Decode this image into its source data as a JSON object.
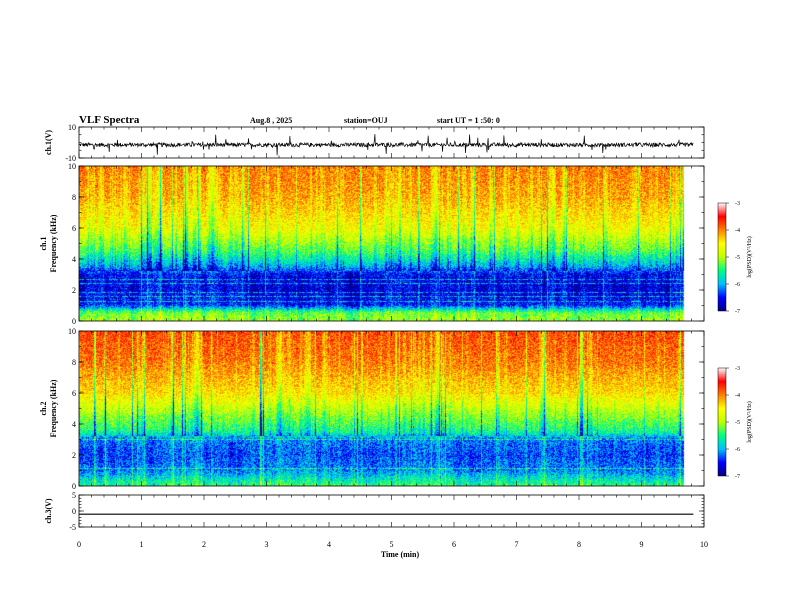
{
  "header": {
    "title": "VLF Spectra",
    "date": "Aug.8 , 2025",
    "station": "station=OUJ",
    "start_ut": "start UT = 1 :50: 0"
  },
  "chart_data": [
    {
      "type": "line",
      "panel": "ch1-waveform",
      "ylabel": "ch.1(V)",
      "ylim": [
        -10,
        10
      ],
      "ytick_labels": [
        "10",
        "-10"
      ],
      "x_range_min": [
        0,
        9.83
      ],
      "baseline": -1.5,
      "noise_amplitude": 1.3,
      "spike_amplitude": 4,
      "color": "#000000"
    },
    {
      "type": "heatmap",
      "panel": "ch1-spectrogram",
      "ylabel_line1": "ch.1",
      "ylabel_line2": "Frequency (kHz)",
      "ylim": [
        0,
        10
      ],
      "ytick_labels": [
        "0",
        "2",
        "4",
        "6",
        "8",
        "10"
      ],
      "x_range_min": [
        0,
        9.83
      ],
      "colorbar": {
        "label": "log(PSD)(V²/Hz)",
        "range": [
          -7,
          -3
        ],
        "tick_labels": [
          "-3",
          "-4",
          "-5",
          "-6",
          "-7"
        ],
        "colors": [
          "#000080",
          "#0000ff",
          "#00c0ff",
          "#00ff80",
          "#c0ff00",
          "#ffff00",
          "#ff8000",
          "#ff0000",
          "#ffffff"
        ]
      },
      "band_profile": [
        {
          "f": 0.0,
          "v": -4.8
        },
        {
          "f": 0.5,
          "v": -5.0
        },
        {
          "f": 1.0,
          "v": -6.4
        },
        {
          "f": 2.0,
          "v": -6.6
        },
        {
          "f": 3.0,
          "v": -6.5
        },
        {
          "f": 3.5,
          "v": -5.8
        },
        {
          "f": 4.5,
          "v": -5.0
        },
        {
          "f": 6.0,
          "v": -4.2
        },
        {
          "f": 8.0,
          "v": -3.7
        },
        {
          "f": 10.0,
          "v": -3.5
        }
      ]
    },
    {
      "type": "heatmap",
      "panel": "ch2-spectrogram",
      "ylabel_line1": "ch.2",
      "ylabel_line2": "Frequency (kHz)",
      "ylim": [
        0,
        10
      ],
      "ytick_labels": [
        "0",
        "2",
        "4",
        "6",
        "8",
        "10"
      ],
      "x_range_min": [
        0,
        9.83
      ],
      "colorbar": {
        "label": "log(PSD)(V²/Hz)",
        "range": [
          -7,
          -3
        ],
        "tick_labels": [
          "-3",
          "-4",
          "-5",
          "-6",
          "-7"
        ],
        "colors": [
          "#000080",
          "#0000ff",
          "#00c0ff",
          "#00ff80",
          "#c0ff00",
          "#ffff00",
          "#ff8000",
          "#ff0000",
          "#ffffff"
        ]
      },
      "band_profile": [
        {
          "f": 0.0,
          "v": -5.2
        },
        {
          "f": 0.5,
          "v": -5.6
        },
        {
          "f": 1.0,
          "v": -6.0
        },
        {
          "f": 2.0,
          "v": -6.2
        },
        {
          "f": 3.0,
          "v": -6.0
        },
        {
          "f": 3.5,
          "v": -5.3
        },
        {
          "f": 4.5,
          "v": -4.8
        },
        {
          "f": 6.0,
          "v": -4.0
        },
        {
          "f": 8.0,
          "v": -3.5
        },
        {
          "f": 10.0,
          "v": -3.3
        }
      ]
    },
    {
      "type": "line",
      "panel": "ch3-waveform",
      "ylabel": "ch.3(V)",
      "ylim": [
        -5,
        5
      ],
      "ytick_labels": [
        "5",
        "0",
        "-5"
      ],
      "x_range_min": [
        0,
        9.83
      ],
      "value": -1.0,
      "color": "#000000"
    }
  ],
  "x_axis": {
    "label": "Time (min)",
    "range": [
      0,
      10
    ],
    "tick_labels": [
      "0",
      "1",
      "2",
      "3",
      "4",
      "5",
      "6",
      "7",
      "8",
      "9",
      "10"
    ]
  }
}
